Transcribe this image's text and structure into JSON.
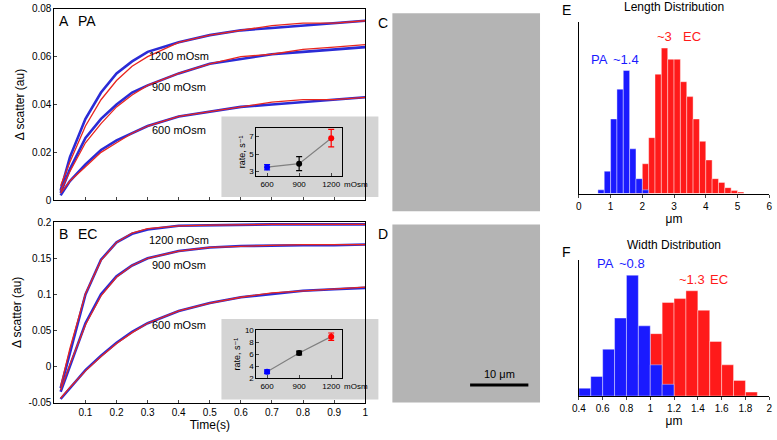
{
  "chart_data": [
    {
      "panel": "A",
      "text": "PA",
      "type": "line",
      "ylabel": "Δ scatter (au)",
      "tick_labels": "y",
      "x": [
        0.02,
        0.05,
        0.1,
        0.15,
        0.2,
        0.25,
        0.3,
        0.4,
        0.5,
        0.6,
        0.7,
        0.8,
        0.9,
        1.0
      ],
      "xlim": [
        0,
        1
      ],
      "xticks": [
        0.1,
        0.2,
        0.3,
        0.4,
        0.5,
        0.6,
        0.7,
        0.8,
        0.9,
        1
      ],
      "ylim": [
        0,
        0.08
      ],
      "yticks": [
        0,
        0.02,
        0.04,
        0.06,
        0.08
      ],
      "series": [
        {
          "annotation": "1200 mOsm",
          "color": "#2b2bd6",
          "values": [
            0.004,
            0.018,
            0.034,
            0.045,
            0.053,
            0.058,
            0.062,
            0.066,
            0.069,
            0.071,
            0.072,
            0.073,
            0.074,
            0.075
          ]
        },
        {
          "color": "#e8261f",
          "values": [
            0.006,
            0.016,
            0.031,
            0.042,
            0.05,
            0.056,
            0.06,
            0.066,
            0.069,
            0.071,
            0.073,
            0.074,
            0.074,
            0.075
          ]
        },
        {
          "annotation": "900 mOsm",
          "color": "#2b2bd6",
          "values": [
            0.003,
            0.013,
            0.026,
            0.034,
            0.04,
            0.045,
            0.048,
            0.053,
            0.057,
            0.059,
            0.061,
            0.062,
            0.063,
            0.064
          ]
        },
        {
          "color": "#e8261f",
          "values": [
            0.004,
            0.012,
            0.024,
            0.032,
            0.039,
            0.044,
            0.048,
            0.053,
            0.057,
            0.06,
            0.061,
            0.063,
            0.064,
            0.065
          ]
        },
        {
          "annotation": "600 mOsm",
          "color": "#2b2bd6",
          "values": [
            0.002,
            0.008,
            0.015,
            0.021,
            0.025,
            0.028,
            0.031,
            0.035,
            0.037,
            0.039,
            0.04,
            0.041,
            0.042,
            0.043
          ]
        },
        {
          "color": "#e8261f",
          "values": [
            0.003,
            0.008,
            0.014,
            0.02,
            0.024,
            0.028,
            0.031,
            0.035,
            0.037,
            0.039,
            0.041,
            0.042,
            0.042,
            0.043
          ]
        }
      ]
    },
    {
      "type": "scatter",
      "xlabel": "mOsm",
      "ylabel": "rate, s⁻¹",
      "marker": "circle",
      "line_style": "solid",
      "color": "#808080",
      "x": [
        600,
        900,
        1200
      ],
      "values": [
        3.5,
        3.9,
        6.8
      ],
      "errors": [
        0.3,
        0.8,
        1.0
      ],
      "colors": [
        "#0000ff",
        "#000000",
        "#ff0000"
      ],
      "xlim": [
        500,
        1300
      ],
      "xticks": [
        600,
        900,
        1200
      ],
      "ylim": [
        2.5,
        8
      ],
      "yticks": [
        3,
        5,
        7
      ]
    },
    {
      "panel": "B",
      "text": "EC",
      "type": "line",
      "xlabel": "Time(s)",
      "ylabel": "Δ scatter (au)",
      "x": [
        0.02,
        0.05,
        0.1,
        0.15,
        0.2,
        0.25,
        0.3,
        0.4,
        0.5,
        0.6,
        0.7,
        0.8,
        0.9,
        1.0
      ],
      "xlim": [
        0,
        1
      ],
      "xticks": [
        0.1,
        0.2,
        0.3,
        0.4,
        0.5,
        0.6,
        0.7,
        0.8,
        0.9,
        1
      ],
      "ylim": [
        -0.05,
        0.2
      ],
      "yticks": [
        -0.05,
        0,
        0.05,
        0.1,
        0.15,
        0.2
      ],
      "series": [
        {
          "annotation": "1200 mOsm",
          "color": "#2b2bd6",
          "values": [
            -0.03,
            0.02,
            0.1,
            0.148,
            0.172,
            0.184,
            0.19,
            0.195,
            0.196,
            0.196,
            0.197,
            0.197,
            0.197,
            0.197
          ]
        },
        {
          "color": "#e8261f",
          "values": [
            -0.028,
            0.025,
            0.101,
            0.147,
            0.172,
            0.185,
            0.191,
            0.195,
            0.196,
            0.197,
            0.197,
            0.197,
            0.197,
            0.197
          ]
        },
        {
          "annotation": "900 mOsm",
          "color": "#2b2bd6",
          "values": [
            -0.035,
            0.0,
            0.06,
            0.1,
            0.125,
            0.14,
            0.15,
            0.16,
            0.165,
            0.167,
            0.168,
            0.168,
            0.168,
            0.169
          ]
        },
        {
          "color": "#e8261f",
          "values": [
            -0.033,
            0.003,
            0.058,
            0.098,
            0.124,
            0.14,
            0.15,
            0.16,
            0.165,
            0.167,
            0.168,
            0.169,
            0.169,
            0.169
          ]
        },
        {
          "annotation": "600 mOsm",
          "color": "#2b2bd6",
          "values": [
            -0.045,
            -0.03,
            -0.005,
            0.015,
            0.033,
            0.048,
            0.06,
            0.077,
            0.088,
            0.096,
            0.101,
            0.105,
            0.107,
            0.109
          ]
        },
        {
          "color": "#e8261f",
          "values": [
            -0.044,
            -0.029,
            -0.006,
            0.014,
            0.032,
            0.047,
            0.06,
            0.077,
            0.088,
            0.096,
            0.102,
            0.105,
            0.108,
            0.11
          ]
        }
      ]
    },
    {
      "type": "scatter",
      "xlabel": "mOsm",
      "ylabel": "rate, s⁻¹",
      "marker": "circle",
      "line_style": "solid",
      "color": "#808080",
      "x": [
        600,
        900,
        1200
      ],
      "values": [
        3.1,
        6.2,
        8.9
      ],
      "errors": [
        0.3,
        0.3,
        0.6
      ],
      "colors": [
        "#0000ff",
        "#000000",
        "#ff0000"
      ],
      "xlim": [
        500,
        1300
      ],
      "xticks": [
        600,
        900,
        1200
      ],
      "ylim": [
        2,
        10
      ],
      "yticks": [
        2,
        4,
        6,
        8,
        10
      ]
    },
    {
      "panel": "E",
      "type": "histogram",
      "title": "Length Distribution",
      "xlabel": "μm",
      "tick_labels": "x",
      "xlim": [
        0,
        6
      ],
      "xticks": [
        0,
        1,
        2,
        3,
        4,
        5,
        6
      ],
      "ylim": [
        0,
        230
      ],
      "series": [
        {
          "name": "PA",
          "annotation": "~1.4",
          "color": "#1a1aff",
          "bins": [
            0.6,
            0.8,
            1.0,
            1.2,
            1.4,
            1.6,
            1.8,
            2.0,
            2.2
          ],
          "values": [
            5,
            30,
            100,
            140,
            165,
            60,
            20,
            5
          ]
        },
        {
          "name": "EC",
          "annotation": "~3",
          "color": "#ff1a1a",
          "bins": [
            1.6,
            1.8,
            2.0,
            2.2,
            2.4,
            2.6,
            2.8,
            3.0,
            3.2,
            3.4,
            3.6,
            3.8,
            4.0,
            4.2,
            4.4,
            4.6,
            4.8,
            5.0,
            5.2
          ],
          "values": [
            5,
            15,
            40,
            75,
            160,
            195,
            180,
            180,
            150,
            130,
            100,
            70,
            45,
            20,
            15,
            8,
            4,
            2
          ]
        }
      ]
    },
    {
      "panel": "F",
      "type": "histogram",
      "title": "Width Distribution",
      "xlabel": "μm",
      "tick_labels": "x",
      "xlim": [
        0.4,
        2.0
      ],
      "xticks": [
        0.4,
        0.6,
        0.8,
        1,
        1.2,
        1.4,
        1.6,
        1.8,
        2
      ],
      "ylim": [
        0,
        175
      ],
      "series": [
        {
          "name": "PA",
          "annotation": "~0.8",
          "color": "#1a1aff",
          "bins": [
            0.4,
            0.5,
            0.6,
            0.7,
            0.8,
            0.9,
            1.0,
            1.1,
            1.2
          ],
          "values": [
            10,
            25,
            60,
            100,
            155,
            90,
            40,
            15
          ]
        },
        {
          "name": "EC",
          "annotation": "~1.3",
          "color": "#ff1a1a",
          "bins": [
            0.8,
            0.9,
            1.0,
            1.1,
            1.2,
            1.3,
            1.4,
            1.5,
            1.6,
            1.7,
            1.8,
            1.9
          ],
          "values": [
            20,
            40,
            80,
            120,
            125,
            135,
            110,
            70,
            40,
            20,
            5
          ]
        }
      ]
    }
  ],
  "images": [
    {
      "panel": "C"
    },
    {
      "panel": "D",
      "scale_bar": "10 μm"
    }
  ]
}
